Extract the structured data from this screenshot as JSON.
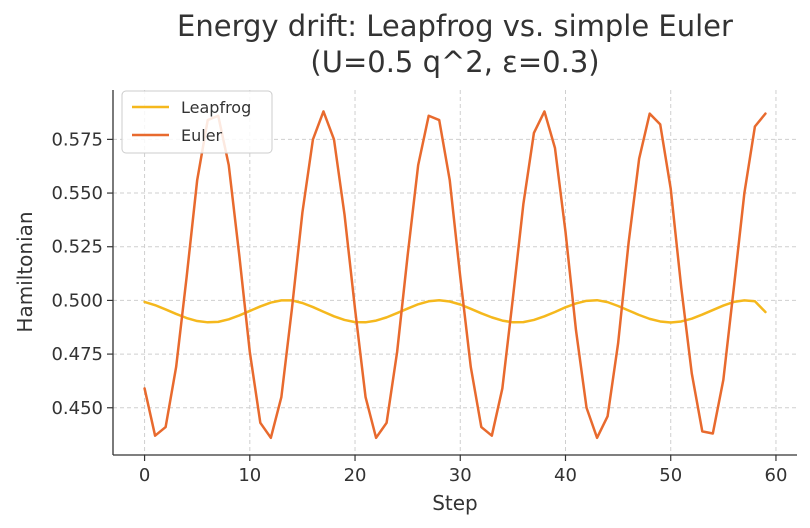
{
  "chart_data": {
    "type": "line",
    "title_line1": "Energy drift: Leapfrog vs. simple Euler",
    "title_line2": "(U=0.5 q^2, ε=0.3)",
    "xlabel": "Step",
    "ylabel": "Hamiltonian",
    "xlim": [
      -3,
      62
    ],
    "ylim": [
      0.428,
      0.598
    ],
    "xticks": [
      0,
      10,
      20,
      30,
      40,
      50,
      60
    ],
    "xtick_labels": [
      "0",
      "10",
      "20",
      "30",
      "40",
      "50",
      "60"
    ],
    "yticks": [
      0.45,
      0.475,
      0.5,
      0.525,
      0.55,
      0.575
    ],
    "ytick_labels": [
      "0.450",
      "0.475",
      "0.500",
      "0.525",
      "0.550",
      "0.575"
    ],
    "grid": true,
    "legend_position": "top-left",
    "x": [
      0,
      1,
      2,
      3,
      4,
      5,
      6,
      7,
      8,
      9,
      10,
      11,
      12,
      13,
      14,
      15,
      16,
      17,
      18,
      19,
      20,
      21,
      22,
      23,
      24,
      25,
      26,
      27,
      28,
      29,
      30,
      31,
      32,
      33,
      34,
      35,
      36,
      37,
      38,
      39,
      40,
      41,
      42,
      43,
      44,
      45,
      46,
      47,
      48,
      49,
      50,
      51,
      52,
      53,
      54,
      55,
      56,
      57,
      58,
      59
    ],
    "series": [
      {
        "name": "Leapfrog",
        "color": "#f5b81d",
        "values": [
          0.4993,
          0.4978,
          0.4958,
          0.4937,
          0.4918,
          0.4904,
          0.4898,
          0.49,
          0.4912,
          0.493,
          0.4951,
          0.4972,
          0.499,
          0.5,
          0.5,
          0.4988,
          0.4969,
          0.4947,
          0.4926,
          0.4909,
          0.4899,
          0.4898,
          0.4906,
          0.4921,
          0.4941,
          0.4962,
          0.4982,
          0.4996,
          0.5001,
          0.4995,
          0.4981,
          0.4961,
          0.494,
          0.4921,
          0.4906,
          0.4898,
          0.4899,
          0.4909,
          0.4926,
          0.4946,
          0.4968,
          0.4986,
          0.4998,
          0.5001,
          0.4992,
          0.4974,
          0.4953,
          0.4932,
          0.4914,
          0.4902,
          0.4897,
          0.4902,
          0.4915,
          0.4934,
          0.4955,
          0.4976,
          0.4993,
          0.5,
          0.4996,
          0.4946
        ]
      },
      {
        "name": "Euler",
        "color": "#e86a2e",
        "values": [
          0.459,
          0.437,
          0.441,
          0.469,
          0.511,
          0.556,
          0.584,
          0.586,
          0.563,
          0.521,
          0.476,
          0.443,
          0.436,
          0.455,
          0.496,
          0.541,
          0.575,
          0.588,
          0.575,
          0.54,
          0.496,
          0.455,
          0.436,
          0.443,
          0.476,
          0.521,
          0.563,
          0.586,
          0.584,
          0.556,
          0.511,
          0.469,
          0.441,
          0.437,
          0.459,
          0.501,
          0.545,
          0.578,
          0.588,
          0.571,
          0.532,
          0.486,
          0.45,
          0.436,
          0.446,
          0.48,
          0.527,
          0.566,
          0.587,
          0.582,
          0.552,
          0.506,
          0.466,
          0.439,
          0.438,
          0.463,
          0.506,
          0.55,
          0.581,
          0.587
        ]
      }
    ]
  }
}
